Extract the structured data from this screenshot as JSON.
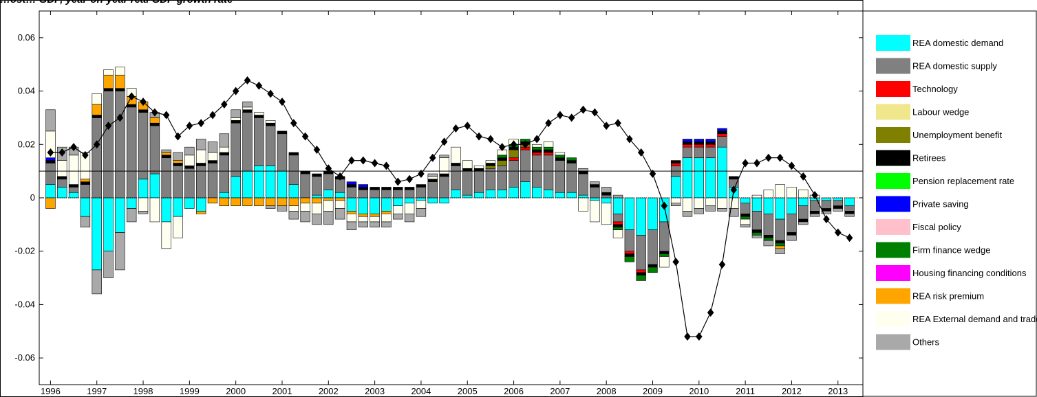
{
  "chart_data": {
    "type": "bar",
    "title": "…ost…  GDP, year-on-year real GDP growth rate",
    "xlabel": "",
    "ylabel": "",
    "ylim": [
      -0.07,
      0.07
    ],
    "yticks": [
      -0.06,
      -0.04,
      -0.02,
      0,
      0.02,
      0.04,
      0.06
    ],
    "ytick_labels": [
      "-0.06",
      "-0.04",
      "-0.02",
      "0",
      "0.02",
      "0.04",
      "0.06"
    ],
    "x_tick_labels": [
      "1996",
      "1997",
      "1998",
      "1999",
      "2000",
      "2001",
      "2002",
      "2003",
      "2004",
      "2005",
      "2006",
      "2007",
      "2008",
      "2009",
      "2010",
      "2011",
      "2012",
      "2013"
    ],
    "reference_line": 0.01,
    "legend_position": "right",
    "stacked": true,
    "series": [
      {
        "name": "REA domestic demand",
        "color": "#00FFFF",
        "values": [
          0.005,
          0.004,
          0.002,
          -0.007,
          -0.027,
          -0.02,
          -0.013,
          -0.004,
          0.007,
          0.009,
          -0.009,
          -0.007,
          -0.004,
          -0.005,
          0.0,
          0.002,
          0.008,
          0.01,
          0.012,
          0.012,
          0.01,
          0.005,
          0.0,
          0.001,
          0.003,
          0.002,
          -0.005,
          -0.006,
          -0.006,
          -0.005,
          -0.003,
          -0.002,
          -0.001,
          -0.002,
          -0.002,
          0.003,
          0.001,
          0.002,
          0.003,
          0.003,
          0.004,
          0.006,
          0.004,
          0.003,
          0.002,
          0.002,
          0.001,
          -0.001,
          -0.002,
          -0.006,
          -0.012,
          -0.014,
          -0.012,
          -0.009,
          0.008,
          0.015,
          0.015,
          0.015,
          0.019,
          0.004,
          -0.002,
          -0.005,
          -0.006,
          -0.008,
          -0.006,
          -0.003,
          -0.001,
          -0.001,
          -0.001,
          -0.003
        ]
      },
      {
        "name": "REA domestic supply",
        "color": "#808080",
        "values": [
          0.008,
          0.003,
          0.002,
          0.005,
          0.03,
          0.04,
          0.04,
          0.034,
          0.025,
          0.018,
          0.015,
          0.012,
          0.011,
          0.012,
          0.013,
          0.014,
          0.02,
          0.022,
          0.018,
          0.015,
          0.014,
          0.011,
          0.009,
          0.007,
          0.006,
          0.005,
          0.004,
          0.003,
          0.003,
          0.003,
          0.003,
          0.003,
          0.004,
          0.006,
          0.008,
          0.009,
          0.009,
          0.008,
          0.008,
          0.009,
          0.01,
          0.012,
          0.012,
          0.013,
          0.012,
          0.011,
          0.008,
          0.004,
          0.001,
          -0.003,
          -0.008,
          -0.013,
          -0.013,
          -0.011,
          0.004,
          0.004,
          0.004,
          0.004,
          0.004,
          0.003,
          -0.004,
          -0.007,
          -0.008,
          -0.008,
          -0.007,
          -0.005,
          -0.004,
          -0.003,
          -0.002,
          -0.002
        ]
      },
      {
        "name": "Technology",
        "color": "#FF0000",
        "values": [
          0.0,
          0.0,
          0.0,
          0.0,
          0.0,
          0.0,
          0.0,
          0.0,
          0.0,
          0.0,
          0.0,
          0.0,
          0.0,
          0.0,
          0.0,
          0.0,
          0.0,
          0.0,
          0.0,
          0.0,
          0.0,
          0.0,
          0.0,
          0.0,
          0.0,
          0.0,
          0.0,
          0.0,
          0.0,
          0.0,
          0.0,
          0.0,
          0.0,
          0.0,
          0.0,
          0.0,
          0.0,
          0.0,
          0.0,
          0.0,
          0.001,
          0.001,
          0.001,
          0.001,
          0.0,
          0.0,
          0.0,
          0.0,
          0.0,
          -0.001,
          -0.001,
          -0.001,
          0.0,
          0.0,
          0.001,
          0.001,
          0.001,
          0.001,
          0.001,
          0.0,
          0.0,
          0.0,
          0.0,
          0.0,
          0.0,
          0.0,
          0.0,
          0.0,
          0.0,
          0.0
        ]
      },
      {
        "name": "Labour wedge",
        "color": "#F0E68C",
        "values": [
          0.0,
          0.0,
          0.0,
          0.0,
          0.0,
          0.0,
          0.0,
          0.0,
          0.0,
          0.0,
          0.0,
          0.0,
          0.0,
          0.0,
          0.0,
          0.0,
          0.0,
          0.0,
          0.0,
          0.0,
          0.0,
          0.0,
          0.0,
          0.0,
          0.0,
          0.0,
          0.0,
          0.0,
          0.0,
          0.0,
          0.0,
          0.0,
          0.0,
          0.0,
          0.0,
          0.0,
          0.0,
          0.0,
          0.0,
          0.0,
          0.0,
          0.0,
          0.0,
          0.0,
          0.0,
          0.0,
          0.0,
          0.0,
          0.0,
          0.0,
          0.0,
          0.0,
          0.0,
          0.0,
          0.0,
          0.0,
          0.0,
          0.0,
          0.0,
          0.0,
          0.0,
          0.0,
          0.0,
          0.0,
          0.0,
          0.0,
          0.0,
          0.0,
          0.0,
          0.0
        ]
      },
      {
        "name": "Unemployment benefit",
        "color": "#808000",
        "values": [
          0.0,
          0.0,
          0.0,
          0.0,
          0.0,
          0.0,
          0.0,
          0.0,
          0.0,
          0.0,
          0.0,
          0.0,
          0.0,
          0.0,
          0.0,
          0.0,
          0.0,
          0.0,
          0.0,
          0.0,
          0.0,
          0.0,
          0.0,
          0.0,
          0.0,
          0.0,
          0.0,
          0.0,
          0.0,
          0.0,
          0.0,
          0.0,
          0.0,
          0.0,
          0.0,
          0.0,
          0.0,
          0.0,
          0.001,
          0.002,
          0.003,
          0.001,
          0.0,
          0.0,
          0.0,
          0.0,
          0.0,
          0.0,
          0.0,
          0.0,
          0.0,
          0.0,
          0.0,
          0.0,
          0.0,
          0.0,
          0.0,
          0.0,
          0.0,
          0.0,
          0.0,
          0.0,
          0.0,
          0.0,
          0.0,
          0.0,
          0.0,
          0.0,
          0.0,
          0.0
        ]
      },
      {
        "name": "Retirees",
        "color": "#000000",
        "values": [
          0.001,
          0.001,
          0.001,
          0.001,
          0.001,
          0.001,
          0.001,
          0.001,
          0.001,
          0.001,
          0.001,
          0.001,
          0.001,
          0.001,
          0.001,
          0.001,
          0.001,
          0.001,
          0.001,
          0.001,
          0.001,
          0.001,
          0.001,
          0.001,
          0.001,
          0.001,
          0.001,
          0.001,
          0.001,
          0.001,
          0.001,
          0.001,
          0.001,
          0.001,
          0.001,
          0.001,
          0.001,
          0.001,
          0.001,
          0.001,
          0.001,
          0.001,
          0.001,
          0.001,
          0.001,
          0.001,
          0.001,
          0.001,
          0.001,
          -0.001,
          -0.001,
          -0.001,
          -0.001,
          -0.001,
          0.001,
          0.001,
          0.001,
          0.001,
          0.001,
          0.001,
          -0.001,
          -0.001,
          -0.001,
          -0.001,
          -0.001,
          -0.001,
          -0.001,
          -0.001,
          -0.001,
          -0.001
        ]
      },
      {
        "name": "Pension replacement rate",
        "color": "#00FF00",
        "values": [
          0.0,
          0.0,
          0.0,
          0.0,
          0.0,
          0.0,
          0.0,
          0.0,
          0.0,
          0.0,
          0.0,
          0.0,
          0.0,
          0.0,
          0.0,
          0.0,
          0.0,
          0.0,
          0.0,
          0.0,
          0.0,
          0.0,
          0.0,
          0.0,
          0.0,
          0.0,
          0.0,
          0.0,
          0.0,
          0.0,
          0.0,
          0.0,
          0.0,
          0.0,
          0.0,
          0.0,
          0.0,
          0.0,
          0.0,
          0.0,
          0.0,
          0.0,
          0.0,
          0.0,
          0.0,
          0.0,
          0.0,
          0.0,
          0.0,
          0.0,
          0.0,
          0.0,
          0.0,
          0.0,
          0.0,
          0.0,
          0.0,
          0.0,
          0.0,
          0.0,
          0.0,
          0.0,
          0.0,
          0.0,
          0.0,
          0.0,
          0.0,
          0.0,
          0.0,
          0.0
        ]
      },
      {
        "name": "Private saving",
        "color": "#0000FF",
        "values": [
          0.001,
          0.0,
          0.0,
          0.0,
          0.0,
          0.0,
          0.0,
          0.0,
          0.0,
          0.0,
          0.0,
          0.0,
          0.0,
          0.0,
          0.0,
          0.0,
          0.0,
          0.0,
          0.0,
          0.0,
          0.0,
          0.0,
          0.0,
          0.0,
          0.0,
          0.0,
          0.001,
          0.001,
          0.0,
          0.0,
          0.0,
          0.0,
          0.0,
          0.0,
          0.0,
          0.0,
          0.0,
          0.0,
          0.0,
          0.0,
          0.0,
          0.0,
          0.0,
          0.0,
          0.0,
          0.0,
          0.0,
          0.0,
          0.0,
          0.0,
          0.0,
          0.0,
          0.0,
          0.0,
          0.0,
          0.001,
          0.001,
          0.001,
          0.001,
          0.0,
          0.0,
          0.0,
          0.0,
          0.0,
          0.0,
          0.0,
          0.0,
          0.0,
          0.0,
          0.0
        ]
      },
      {
        "name": "Fiscal policy",
        "color": "#FFC0CB",
        "values": [
          0.0,
          0.0,
          0.0,
          0.0,
          0.0,
          0.0,
          0.0,
          0.0,
          0.0,
          0.0,
          0.0,
          0.0,
          0.0,
          0.0,
          0.0,
          0.0,
          0.0,
          0.0,
          0.0,
          0.0,
          0.0,
          0.0,
          0.0,
          0.0,
          0.0,
          0.0,
          0.0,
          0.0,
          0.0,
          0.0,
          0.0,
          0.0,
          0.0,
          0.0,
          0.0,
          0.0,
          0.0,
          0.0,
          0.0,
          0.0,
          0.0,
          0.0,
          0.0,
          0.0,
          0.0,
          0.0,
          0.0,
          0.0,
          0.0,
          0.0,
          0.0,
          0.0,
          0.0,
          0.0,
          0.0,
          0.0,
          0.0,
          0.0,
          0.0,
          0.0,
          0.0,
          0.0,
          0.0,
          0.0,
          0.0,
          0.0,
          0.0,
          0.0,
          0.0,
          0.0
        ]
      },
      {
        "name": "Firm finance wedge",
        "color": "#008000",
        "values": [
          0.0,
          0.0,
          0.0,
          0.0,
          0.0,
          0.0,
          0.0,
          0.0,
          0.0,
          0.0,
          0.0,
          0.0,
          0.0,
          0.0,
          0.0,
          0.0,
          0.0,
          0.0,
          0.0,
          0.0,
          0.0,
          0.0,
          0.0,
          0.0,
          0.0,
          0.0,
          0.0,
          0.0,
          0.0,
          0.0,
          0.0,
          0.0,
          0.0,
          0.0,
          0.0,
          0.0,
          0.0,
          0.0,
          0.0,
          0.001,
          0.001,
          0.001,
          0.001,
          0.001,
          0.001,
          0.001,
          0.0,
          0.0,
          0.0,
          -0.001,
          -0.002,
          -0.002,
          -0.002,
          -0.001,
          0.0,
          0.0,
          0.0,
          0.0,
          0.0,
          0.0,
          -0.001,
          -0.001,
          -0.001,
          -0.001,
          0.0,
          0.0,
          0.0,
          0.0,
          0.0,
          0.0
        ]
      },
      {
        "name": "Housing financing conditions",
        "color": "#FF00FF",
        "values": [
          0.0,
          0.0,
          0.0,
          0.0,
          0.0,
          0.0,
          0.0,
          0.0,
          0.0,
          0.0,
          0.0,
          0.0,
          0.0,
          0.0,
          0.0,
          0.0,
          0.0,
          0.0,
          0.0,
          0.0,
          0.0,
          0.0,
          0.0,
          0.0,
          0.0,
          0.0,
          0.0,
          0.0,
          0.0,
          0.0,
          0.0,
          0.0,
          0.0,
          0.0,
          0.0,
          0.0,
          0.0,
          0.0,
          0.0,
          0.0,
          0.0,
          0.0,
          0.0,
          0.0,
          0.0,
          0.0,
          0.0,
          0.0,
          0.0,
          0.0,
          0.0,
          0.0,
          0.0,
          0.0,
          0.0,
          0.0,
          0.0,
          0.0,
          0.0,
          0.0,
          0.0,
          0.0,
          0.0,
          0.0,
          0.0,
          0.0,
          0.0,
          0.0,
          0.0,
          0.0
        ]
      },
      {
        "name": "REA risk premium",
        "color": "#FFA500",
        "values": [
          -0.004,
          0.0,
          0.0,
          0.001,
          0.004,
          0.005,
          0.005,
          0.003,
          0.003,
          0.002,
          0.001,
          0.001,
          0.0,
          -0.001,
          -0.002,
          -0.003,
          -0.003,
          -0.003,
          -0.003,
          -0.003,
          -0.003,
          -0.003,
          -0.002,
          -0.002,
          -0.001,
          -0.001,
          -0.001,
          -0.001,
          -0.001,
          -0.001,
          0.0,
          0.0,
          0.0,
          0.0,
          0.0,
          0.0,
          0.0,
          0.0,
          0.0,
          0.0,
          0.0,
          0.0,
          0.0,
          0.0,
          0.0,
          0.0,
          0.0,
          0.0,
          0.0,
          0.0,
          0.0,
          0.0,
          0.0,
          0.0,
          0.0,
          0.0,
          0.0,
          0.0,
          0.0,
          0.0,
          0.0,
          0.0,
          0.0,
          -0.001,
          0.0,
          0.0,
          0.0,
          0.0,
          0.0,
          0.0
        ]
      },
      {
        "name": "REA External demand and trade",
        "color": "#FFFFF0",
        "values": [
          0.01,
          0.006,
          0.011,
          0.01,
          0.004,
          0.002,
          0.003,
          0.003,
          -0.005,
          -0.009,
          -0.01,
          -0.008,
          0.004,
          0.005,
          0.003,
          0.002,
          0.001,
          0.001,
          0.001,
          0.001,
          0.0,
          -0.002,
          -0.003,
          -0.004,
          -0.004,
          -0.003,
          -0.003,
          -0.002,
          -0.002,
          -0.003,
          -0.003,
          -0.004,
          -0.003,
          0.001,
          0.006,
          0.006,
          0.003,
          0.001,
          0.001,
          0.002,
          0.002,
          0.0,
          0.001,
          0.002,
          0.001,
          0.0,
          -0.005,
          -0.008,
          -0.008,
          -0.003,
          0.0,
          0.0,
          0.0,
          -0.004,
          -0.002,
          -0.005,
          -0.004,
          -0.003,
          -0.004,
          -0.004,
          -0.002,
          0.001,
          0.003,
          0.005,
          0.004,
          0.003,
          0.001,
          0.0,
          0.0,
          0.0
        ]
      },
      {
        "name": "Others",
        "color": "#A9A9A9",
        "values": [
          0.008,
          0.005,
          0.003,
          -0.004,
          -0.009,
          -0.01,
          -0.014,
          -0.005,
          -0.001,
          0.002,
          0.001,
          0.003,
          0.003,
          0.004,
          0.004,
          0.005,
          0.003,
          0.002,
          0.0,
          -0.001,
          -0.002,
          -0.003,
          -0.004,
          -0.004,
          -0.005,
          -0.004,
          -0.003,
          -0.002,
          -0.002,
          -0.002,
          -0.002,
          -0.003,
          -0.003,
          0.001,
          0.001,
          0.0,
          0.0,
          0.0,
          0.0,
          0.0,
          0.0,
          0.0,
          0.0,
          0.0,
          0.0,
          0.0,
          0.001,
          0.001,
          0.002,
          0.001,
          0.0,
          0.0,
          0.0,
          0.0,
          -0.001,
          -0.002,
          -0.002,
          -0.002,
          -0.001,
          -0.003,
          -0.001,
          -0.001,
          -0.002,
          -0.002,
          -0.002,
          -0.001,
          -0.001,
          -0.001,
          -0.001,
          -0.001
        ]
      }
    ],
    "line": {
      "name": "GDP growth",
      "marker": "diamond",
      "color": "#000000",
      "values": [
        0.017,
        0.017,
        0.019,
        0.016,
        0.02,
        0.027,
        0.03,
        0.038,
        0.036,
        0.032,
        0.031,
        0.023,
        0.027,
        0.028,
        0.031,
        0.035,
        0.04,
        0.044,
        0.042,
        0.039,
        0.036,
        0.028,
        0.023,
        0.018,
        0.011,
        0.008,
        0.014,
        0.014,
        0.013,
        0.012,
        0.006,
        0.007,
        0.009,
        0.015,
        0.021,
        0.026,
        0.027,
        0.023,
        0.022,
        0.019,
        0.02,
        0.02,
        0.022,
        0.028,
        0.031,
        0.03,
        0.033,
        0.032,
        0.027,
        0.028,
        0.022,
        0.017,
        0.009,
        -0.003,
        -0.024,
        -0.052,
        -0.052,
        -0.043,
        -0.025,
        0.003,
        0.013,
        0.013,
        0.015,
        0.015,
        0.012,
        0.008,
        0.001,
        -0.008,
        -0.013,
        -0.015
      ]
    }
  }
}
